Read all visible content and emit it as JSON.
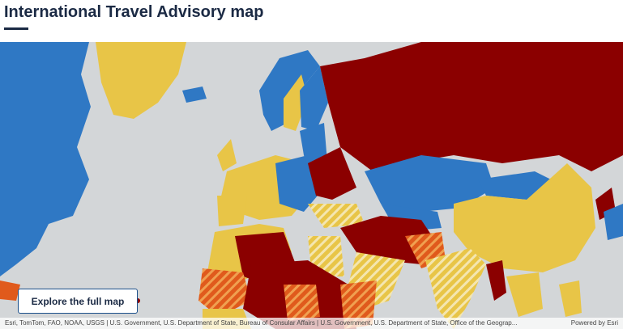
{
  "header": {
    "title": "International Travel Advisory map"
  },
  "button": {
    "label": "Explore the full map"
  },
  "footer": {
    "attribution": "Esri, TomTom, FAO, NOAA, USGS | U.S. Government, U.S. Department of State, Bureau of Consular Affairs | U.S. Government, U.S. Department of State, Office of the Geograp...",
    "powered_by": "Powered by Esri"
  }
}
